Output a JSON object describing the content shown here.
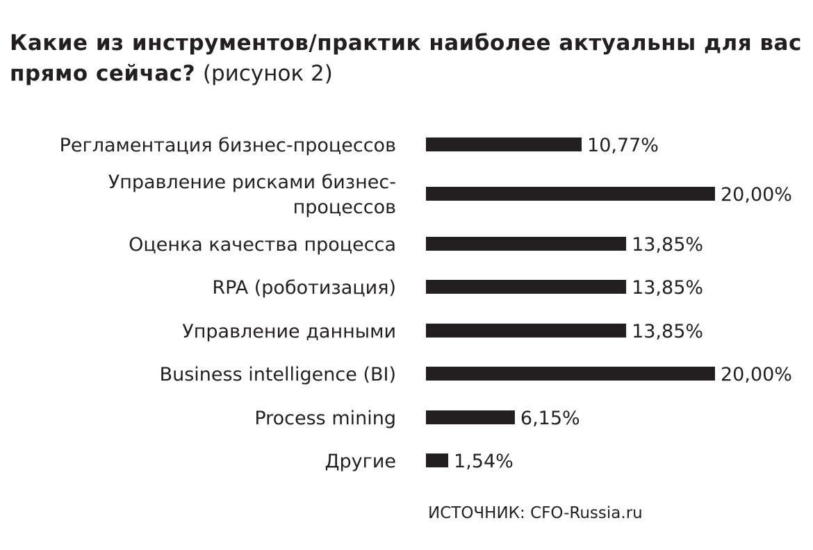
{
  "title": {
    "bold": "Какие из инструментов/практик наиболее актуальны для вас прямо сейчас?",
    "light": "(рисунок 2)"
  },
  "source": "ИСТОЧНИК: CFO-Russia.ru",
  "colors": {
    "bar": "#231f20",
    "text": "#231f20"
  },
  "chart_data": {
    "type": "bar",
    "orientation": "horizontal",
    "title": "Какие из инструментов/практик наиболее актуальны для вас прямо сейчас? (рисунок 2)",
    "categories": [
      [
        "Регламентация бизнес-процессов"
      ],
      [
        "Управление рисками бизнес-",
        "процессов"
      ],
      [
        "Оценка качества процесса"
      ],
      [
        "RPA (роботизация)"
      ],
      [
        "Управление данными"
      ],
      [
        "Business intelligence (BI)"
      ],
      [
        "Process mining"
      ],
      [
        "Другие"
      ]
    ],
    "values": [
      10.77,
      20.0,
      13.85,
      13.85,
      13.85,
      20.0,
      6.15,
      1.54
    ],
    "value_labels": [
      "10,77%",
      "20,00%",
      "13,85%",
      "13,85%",
      "13,85%",
      "20,00%",
      "6,15%",
      "1,54%"
    ],
    "xlim": [
      0,
      20
    ],
    "grid": false,
    "legend": "none"
  }
}
